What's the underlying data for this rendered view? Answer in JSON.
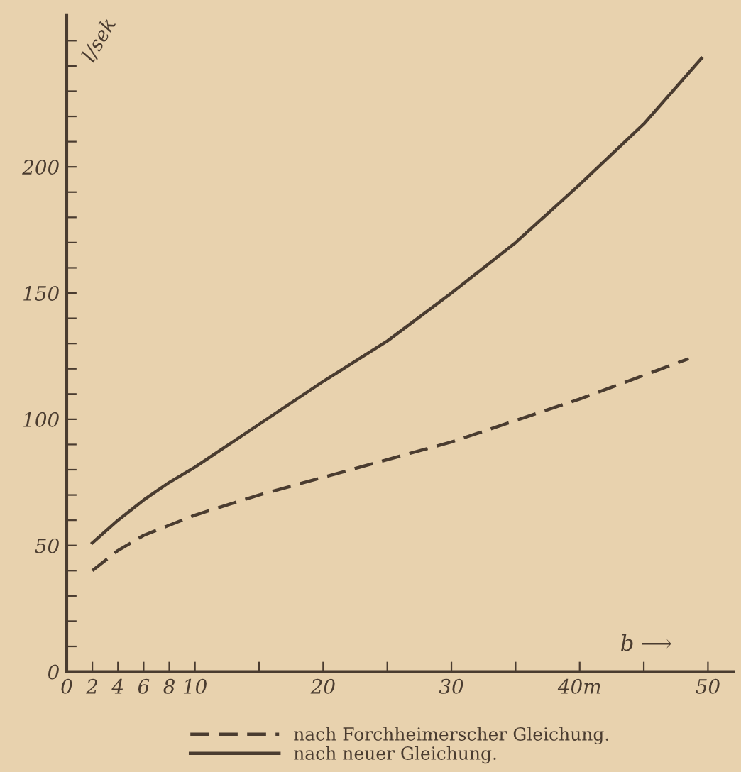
{
  "chart_data": {
    "type": "line",
    "ylabel": "l/sek",
    "x": [
      2,
      4,
      6,
      8,
      10,
      15,
      20,
      25,
      30,
      35,
      40,
      45,
      49.5
    ],
    "series": [
      {
        "name": "nach Forchheimerscher Gleichung.",
        "color": "#4a3c30",
        "line_style": "dashed",
        "x": [
          2,
          4,
          6,
          8,
          10,
          15,
          20,
          30,
          40,
          48.5
        ],
        "values": [
          40,
          48,
          54,
          58,
          62,
          70,
          77,
          91,
          108,
          124
        ]
      },
      {
        "name": "nach neuer Gleichung.",
        "color": "#4a3c30",
        "line_style": "solid",
        "values": [
          51,
          60,
          68,
          75,
          81,
          98,
          115,
          131,
          150,
          170,
          193,
          217,
          243
        ]
      }
    ],
    "xlim": [
      0,
      52
    ],
    "ylim": [
      0,
      260
    ],
    "xticks": [
      0,
      2,
      4,
      6,
      8,
      10,
      {
        "value": 15,
        "label": null
      },
      20,
      {
        "value": 25,
        "label": null
      },
      30,
      {
        "value": 35,
        "label": null
      },
      {
        "value": 40,
        "label": "40m"
      },
      {
        "value": 45,
        "label": null
      },
      50
    ],
    "yticks": [
      0,
      {
        "value": 10,
        "label": null
      },
      {
        "value": 20,
        "label": null
      },
      {
        "value": 30,
        "label": null
      },
      {
        "value": 40,
        "label": null
      },
      50,
      {
        "value": 60,
        "label": null
      },
      {
        "value": 70,
        "label": null
      },
      {
        "value": 80,
        "label": null
      },
      {
        "value": 90,
        "label": null
      },
      100,
      {
        "value": 110,
        "label": null
      },
      {
        "value": 120,
        "label": null
      },
      {
        "value": 130,
        "label": null
      },
      {
        "value": 140,
        "label": null
      },
      150,
      {
        "value": 160,
        "label": null
      },
      {
        "value": 170,
        "label": null
      },
      {
        "value": 180,
        "label": null
      },
      {
        "value": 190,
        "label": null
      },
      200,
      {
        "value": 210,
        "label": null
      },
      {
        "value": 220,
        "label": null
      },
      {
        "value": 230,
        "label": null
      },
      {
        "value": 240,
        "label": null
      },
      {
        "value": 250,
        "label": null
      }
    ],
    "annotations": [
      "b ⟶"
    ],
    "legend": "bottom",
    "grid": false,
    "marker": "none"
  }
}
